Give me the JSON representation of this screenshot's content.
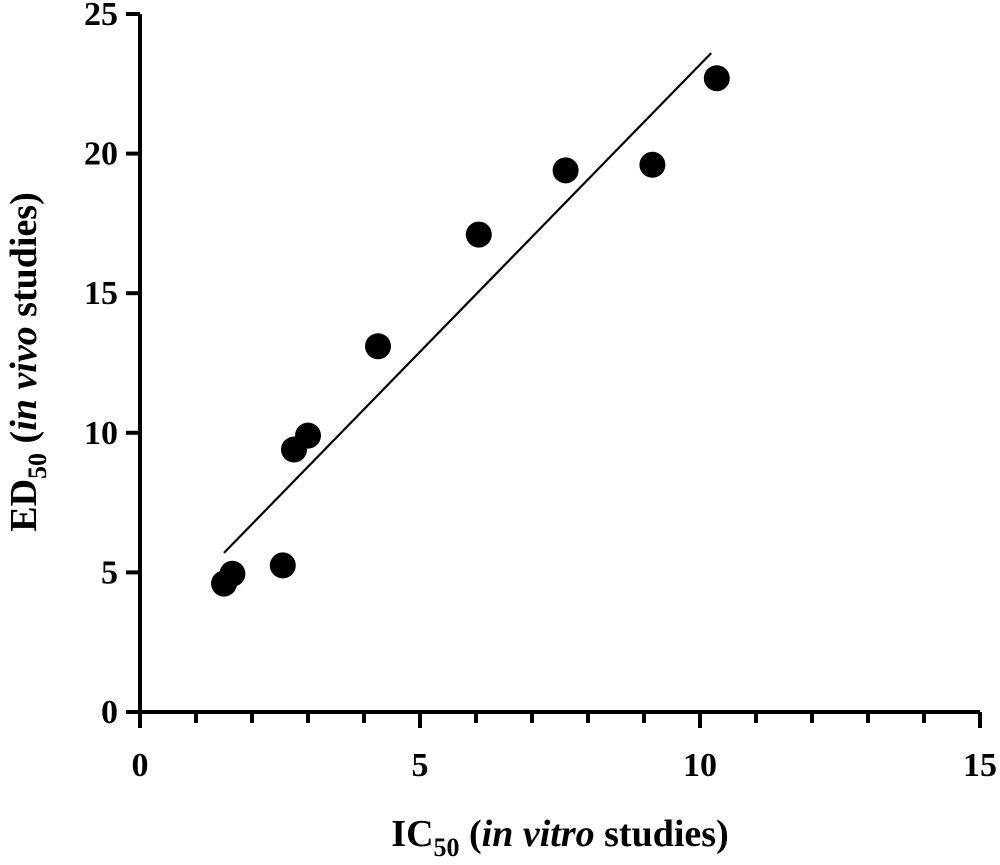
{
  "chart_data": {
    "type": "scatter",
    "title": "",
    "xlabel": {
      "prefix": "IC",
      "subscript": "50",
      "open": " (",
      "italic": "in vitro",
      "suffix": " studies)"
    },
    "ylabel": {
      "prefix": "ED",
      "subscript": "50",
      "open": " (",
      "italic": "in vivo",
      "suffix": " studies)"
    },
    "xlim": [
      0,
      15
    ],
    "ylim": [
      0,
      25
    ],
    "x_ticks": [
      "0",
      "5",
      "10",
      "15"
    ],
    "y_ticks": [
      "0",
      "5",
      "10",
      "15",
      "20",
      "25"
    ],
    "x_minor_step": 1,
    "grid": false,
    "points": [
      {
        "x": 1.5,
        "y": 4.6
      },
      {
        "x": 1.65,
        "y": 4.95
      },
      {
        "x": 2.55,
        "y": 5.25
      },
      {
        "x": 2.75,
        "y": 9.4
      },
      {
        "x": 3.0,
        "y": 9.9
      },
      {
        "x": 4.25,
        "y": 13.1
      },
      {
        "x": 6.05,
        "y": 17.1
      },
      {
        "x": 7.6,
        "y": 19.4
      },
      {
        "x": 9.15,
        "y": 19.6
      },
      {
        "x": 10.3,
        "y": 22.7
      }
    ],
    "fit_line": {
      "x": [
        1.5,
        10.2
      ],
      "y": [
        5.7,
        23.6
      ]
    },
    "colors": {
      "marker": "#000000",
      "line": "#000000",
      "axis": "#000000"
    }
  }
}
